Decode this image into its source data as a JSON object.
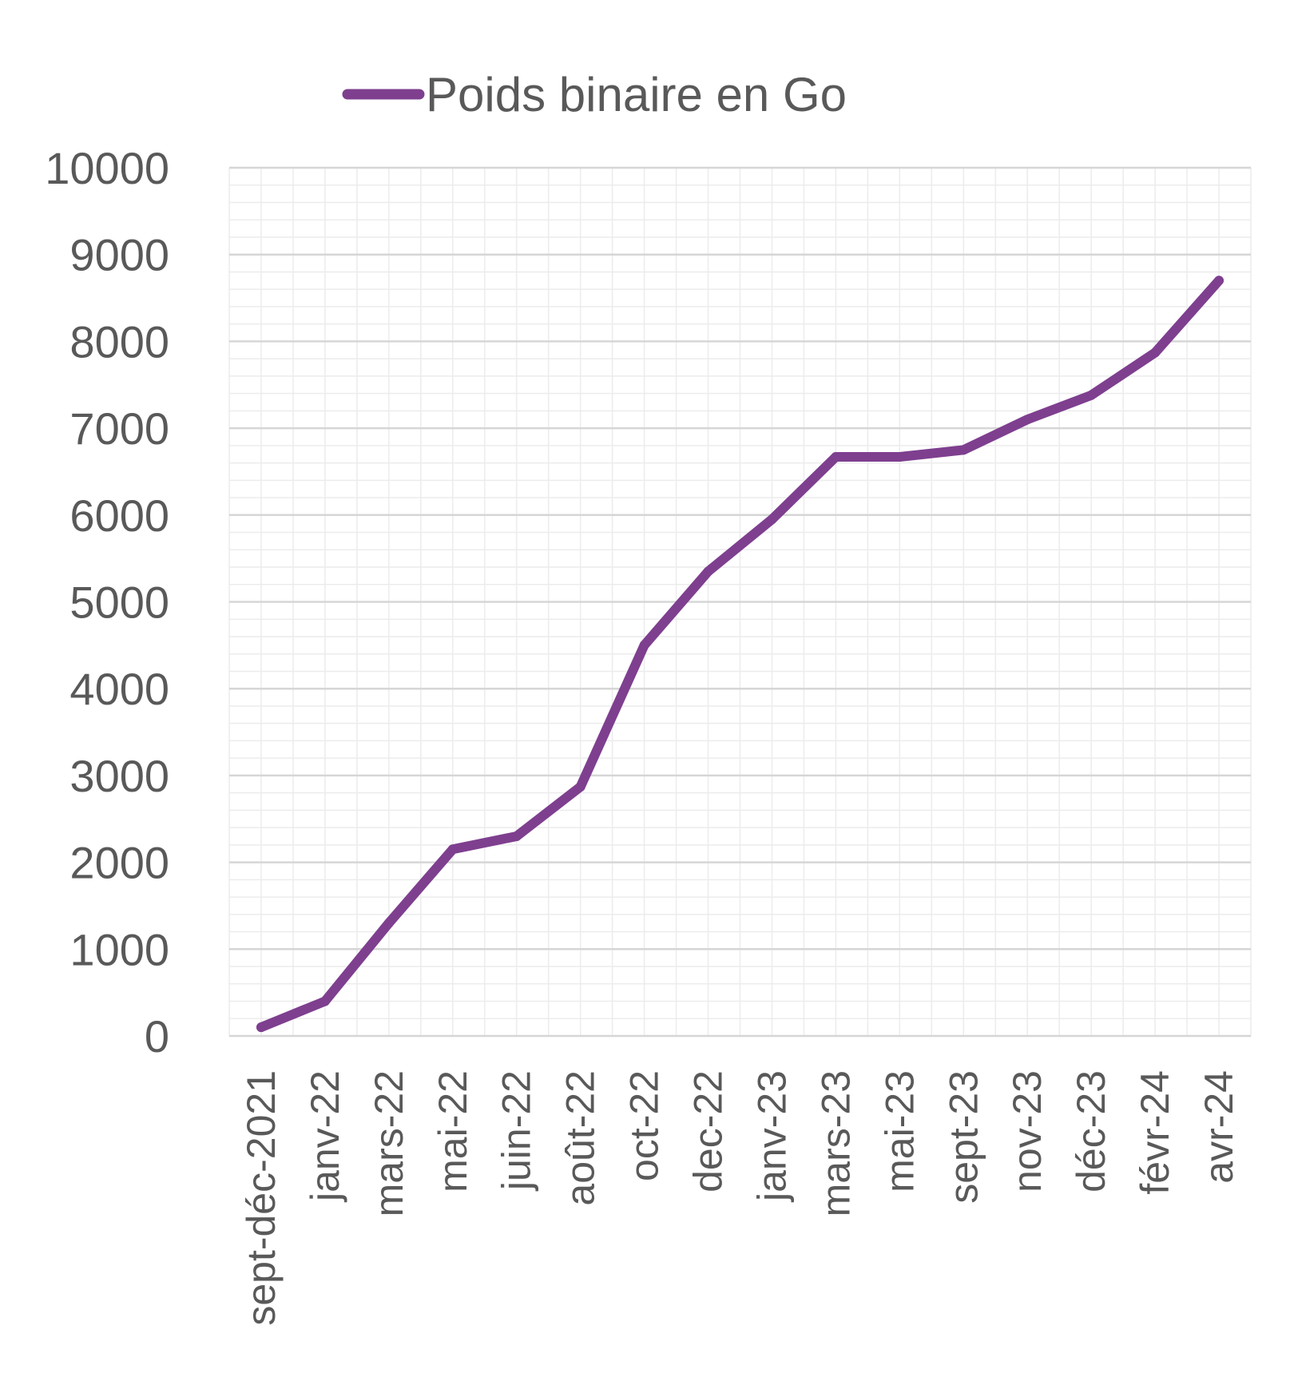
{
  "chart_data": {
    "type": "line",
    "title": "",
    "xlabel": "",
    "ylabel": "",
    "ylim": [
      0,
      10000
    ],
    "yticks": [
      0,
      1000,
      2000,
      3000,
      4000,
      5000,
      6000,
      7000,
      8000,
      9000,
      10000
    ],
    "grid": true,
    "legend_position": "top",
    "categories": [
      "sept-déc-2021",
      "janv-22",
      "mars-22",
      "mai-22",
      "juin-22",
      "août-22",
      "oct-22",
      "dec-22",
      "janv-23",
      "mars-23",
      "mai-23",
      "sept-23",
      "nov-23",
      "déc-23",
      "févr-24",
      "avr-24"
    ],
    "series": [
      {
        "name": "Poids binaire en Go",
        "color": "#7E3F8F",
        "values": [
          100,
          400,
          1300,
          2150,
          2300,
          2870,
          4500,
          5350,
          5950,
          6670,
          6670,
          6750,
          7100,
          7380,
          7870,
          8700
        ]
      }
    ]
  }
}
